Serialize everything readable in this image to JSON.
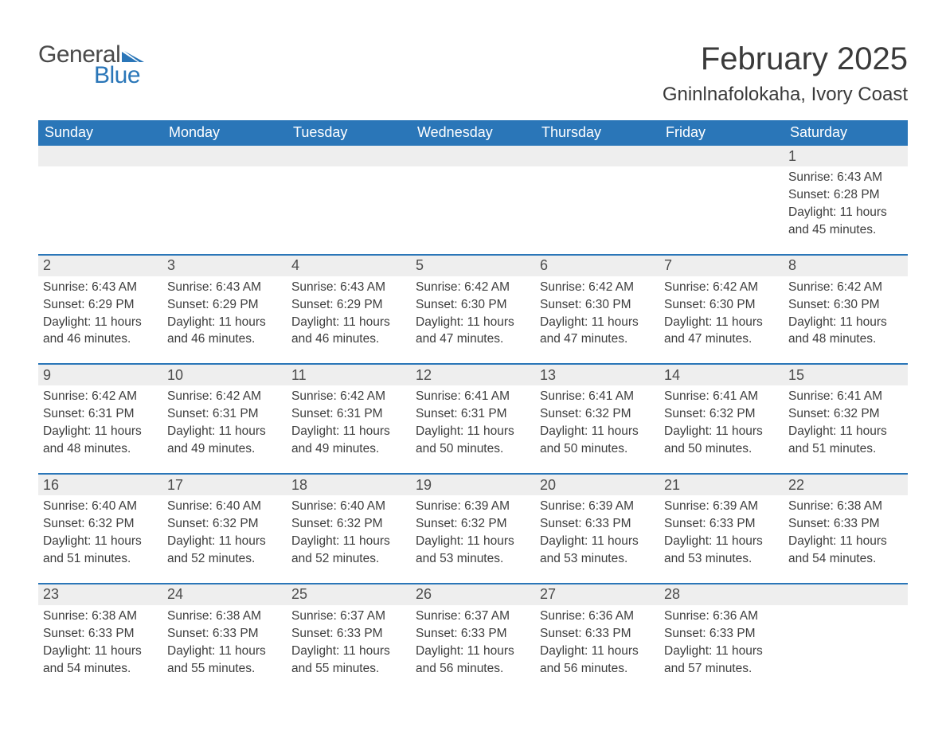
{
  "brand": {
    "word1": "General",
    "word2": "Blue",
    "mark_color": "#2a76b8",
    "text_color": "#4a4a4a"
  },
  "header": {
    "month_title": "February 2025",
    "location": "Gninlnafolokaha, Ivory Coast"
  },
  "colors": {
    "header_bg": "#2a76b8",
    "header_text": "#ffffff",
    "daynum_bg": "#eeeeee",
    "daynum_text": "#4c4c4c",
    "body_text": "#3d3d3d",
    "row_divider": "#2a76b8",
    "page_bg": "#ffffff"
  },
  "weekdays": [
    "Sunday",
    "Monday",
    "Tuesday",
    "Wednesday",
    "Thursday",
    "Friday",
    "Saturday"
  ],
  "labels": {
    "sunrise_prefix": "Sunrise: ",
    "sunset_prefix": "Sunset: ",
    "daylight_prefix": "Daylight: ",
    "daylight_hours_word": " hours",
    "daylight_and_word": "and ",
    "daylight_minutes_suffix": " minutes."
  },
  "weeks": [
    [
      null,
      null,
      null,
      null,
      null,
      null,
      {
        "day": 1,
        "sunrise": "6:43 AM",
        "sunset": "6:28 PM",
        "daylight_h": 11,
        "daylight_m": 45
      }
    ],
    [
      {
        "day": 2,
        "sunrise": "6:43 AM",
        "sunset": "6:29 PM",
        "daylight_h": 11,
        "daylight_m": 46
      },
      {
        "day": 3,
        "sunrise": "6:43 AM",
        "sunset": "6:29 PM",
        "daylight_h": 11,
        "daylight_m": 46
      },
      {
        "day": 4,
        "sunrise": "6:43 AM",
        "sunset": "6:29 PM",
        "daylight_h": 11,
        "daylight_m": 46
      },
      {
        "day": 5,
        "sunrise": "6:42 AM",
        "sunset": "6:30 PM",
        "daylight_h": 11,
        "daylight_m": 47
      },
      {
        "day": 6,
        "sunrise": "6:42 AM",
        "sunset": "6:30 PM",
        "daylight_h": 11,
        "daylight_m": 47
      },
      {
        "day": 7,
        "sunrise": "6:42 AM",
        "sunset": "6:30 PM",
        "daylight_h": 11,
        "daylight_m": 47
      },
      {
        "day": 8,
        "sunrise": "6:42 AM",
        "sunset": "6:30 PM",
        "daylight_h": 11,
        "daylight_m": 48
      }
    ],
    [
      {
        "day": 9,
        "sunrise": "6:42 AM",
        "sunset": "6:31 PM",
        "daylight_h": 11,
        "daylight_m": 48
      },
      {
        "day": 10,
        "sunrise": "6:42 AM",
        "sunset": "6:31 PM",
        "daylight_h": 11,
        "daylight_m": 49
      },
      {
        "day": 11,
        "sunrise": "6:42 AM",
        "sunset": "6:31 PM",
        "daylight_h": 11,
        "daylight_m": 49
      },
      {
        "day": 12,
        "sunrise": "6:41 AM",
        "sunset": "6:31 PM",
        "daylight_h": 11,
        "daylight_m": 50
      },
      {
        "day": 13,
        "sunrise": "6:41 AM",
        "sunset": "6:32 PM",
        "daylight_h": 11,
        "daylight_m": 50
      },
      {
        "day": 14,
        "sunrise": "6:41 AM",
        "sunset": "6:32 PM",
        "daylight_h": 11,
        "daylight_m": 50
      },
      {
        "day": 15,
        "sunrise": "6:41 AM",
        "sunset": "6:32 PM",
        "daylight_h": 11,
        "daylight_m": 51
      }
    ],
    [
      {
        "day": 16,
        "sunrise": "6:40 AM",
        "sunset": "6:32 PM",
        "daylight_h": 11,
        "daylight_m": 51
      },
      {
        "day": 17,
        "sunrise": "6:40 AM",
        "sunset": "6:32 PM",
        "daylight_h": 11,
        "daylight_m": 52
      },
      {
        "day": 18,
        "sunrise": "6:40 AM",
        "sunset": "6:32 PM",
        "daylight_h": 11,
        "daylight_m": 52
      },
      {
        "day": 19,
        "sunrise": "6:39 AM",
        "sunset": "6:32 PM",
        "daylight_h": 11,
        "daylight_m": 53
      },
      {
        "day": 20,
        "sunrise": "6:39 AM",
        "sunset": "6:33 PM",
        "daylight_h": 11,
        "daylight_m": 53
      },
      {
        "day": 21,
        "sunrise": "6:39 AM",
        "sunset": "6:33 PM",
        "daylight_h": 11,
        "daylight_m": 53
      },
      {
        "day": 22,
        "sunrise": "6:38 AM",
        "sunset": "6:33 PM",
        "daylight_h": 11,
        "daylight_m": 54
      }
    ],
    [
      {
        "day": 23,
        "sunrise": "6:38 AM",
        "sunset": "6:33 PM",
        "daylight_h": 11,
        "daylight_m": 54
      },
      {
        "day": 24,
        "sunrise": "6:38 AM",
        "sunset": "6:33 PM",
        "daylight_h": 11,
        "daylight_m": 55
      },
      {
        "day": 25,
        "sunrise": "6:37 AM",
        "sunset": "6:33 PM",
        "daylight_h": 11,
        "daylight_m": 55
      },
      {
        "day": 26,
        "sunrise": "6:37 AM",
        "sunset": "6:33 PM",
        "daylight_h": 11,
        "daylight_m": 56
      },
      {
        "day": 27,
        "sunrise": "6:36 AM",
        "sunset": "6:33 PM",
        "daylight_h": 11,
        "daylight_m": 56
      },
      {
        "day": 28,
        "sunrise": "6:36 AM",
        "sunset": "6:33 PM",
        "daylight_h": 11,
        "daylight_m": 57
      },
      null
    ]
  ]
}
